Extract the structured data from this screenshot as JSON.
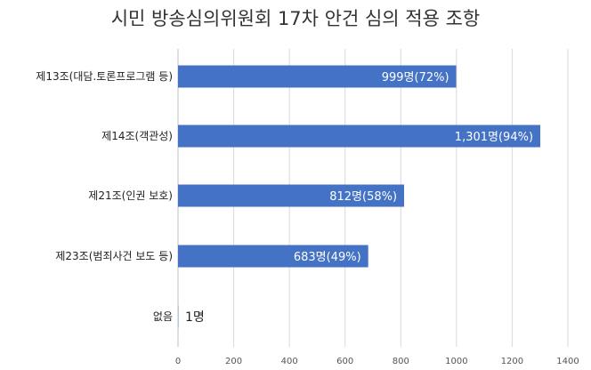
{
  "chart_data": {
    "type": "bar",
    "orientation": "horizontal",
    "title": "시민 방송심의위원회 17차 안건 심의 적용 조항",
    "categories": [
      "제13조(대담.토론프로그램 등)",
      "제14조(객관성)",
      "제21조(인권 보호)",
      "제23조(범죄사건 보도 등)",
      "없음"
    ],
    "values": [
      999,
      1301,
      812,
      683,
      1
    ],
    "data_labels": [
      "999명(72%)",
      "1,301명(94%)",
      "812명(58%)",
      "683명(49%)",
      "1명"
    ],
    "xlim": [
      0,
      1400
    ],
    "xticks": [
      0,
      200,
      400,
      600,
      800,
      1000,
      1200,
      1400
    ],
    "grid": true,
    "bar_color": "#4472c4"
  }
}
